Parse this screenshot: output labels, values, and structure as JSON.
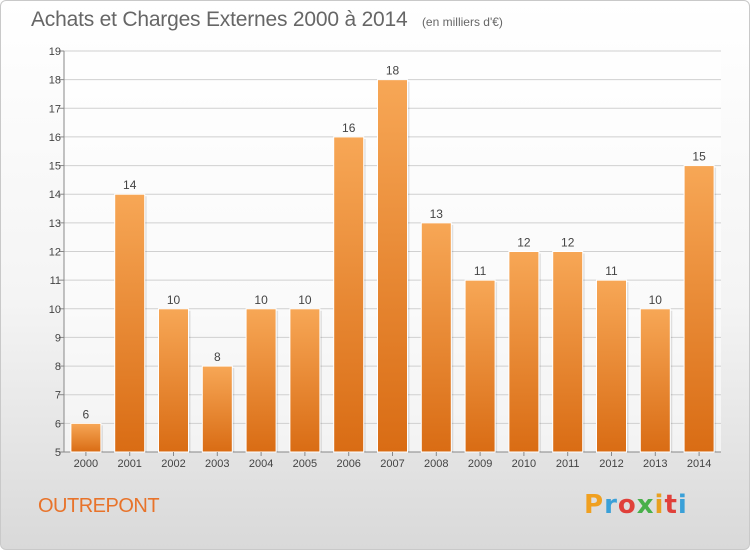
{
  "title": "Achats et Charges Externes 2000 à 2014",
  "subtitle": "(en milliers d'€)",
  "location": "OUTREPONT",
  "logo": {
    "letters": [
      "P",
      "r",
      "o",
      "x",
      "i",
      "t",
      "i"
    ],
    "colors": [
      "#f0a020",
      "#3aa0d8",
      "#e0403a",
      "#48b04a",
      "#e8a020",
      "#e0403a",
      "#3aa0d8"
    ]
  },
  "colors": {
    "bar_top": "#f7a756",
    "bar_bottom": "#d96c14",
    "grid": "#d0d0d0",
    "text": "#444444"
  },
  "chart_data": {
    "type": "bar",
    "title": "Achats et Charges Externes 2000 à 2014",
    "subtitle": "(en milliers d'€)",
    "categories": [
      "2000",
      "2001",
      "2002",
      "2003",
      "2004",
      "2005",
      "2006",
      "2007",
      "2008",
      "2009",
      "2010",
      "2011",
      "2012",
      "2013",
      "2014"
    ],
    "values": [
      6,
      14,
      10,
      8,
      10,
      10,
      16,
      18,
      13,
      11,
      12,
      12,
      11,
      10,
      15
    ],
    "ylim": [
      5,
      19
    ],
    "yticks": [
      5,
      6,
      7,
      8,
      9,
      10,
      11,
      12,
      13,
      14,
      15,
      16,
      17,
      18,
      19
    ],
    "grid": true,
    "xlabel": "",
    "ylabel": ""
  }
}
